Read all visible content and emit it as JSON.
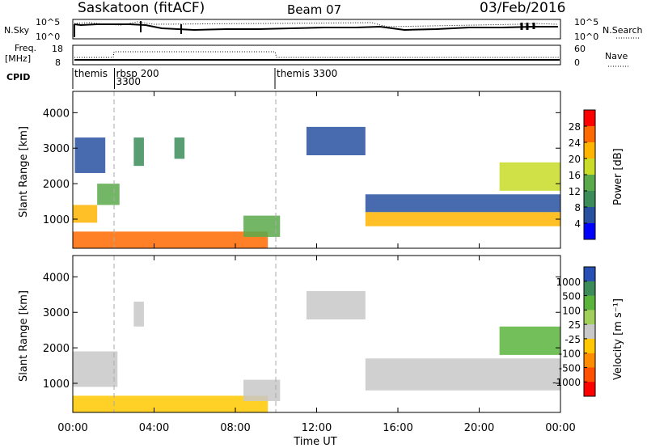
{
  "header": {
    "station": "Saskatoon (fitACF)",
    "beam": "Beam 07",
    "date": "03/Feb/2016"
  },
  "summary": {
    "nsky_label": "N.Sky",
    "nsearch_label": "N.Search",
    "nsky_ticks": [
      "10^5",
      "10^0"
    ],
    "nsearch_ticks": [
      "10^5",
      "10^0"
    ],
    "freq_label_1": "Freq.",
    "freq_label_2": "[MHz]",
    "freq_ticks": [
      "18",
      "8"
    ],
    "nave_label": "Nave",
    "nave_ticks": [
      "60",
      "0"
    ],
    "cpid_label": "CPID",
    "cpid_entries": [
      {
        "name": "themis",
        "number": "",
        "start_hour": 0.0
      },
      {
        "name": "rbsp",
        "number": "200",
        "start_hour": 2.05
      },
      {
        "name": "",
        "number": "3300",
        "start_hour": 2.05
      },
      {
        "name": "themis",
        "number": "3300",
        "start_hour": 9.95
      }
    ]
  },
  "x_axis": {
    "label": "Time UT",
    "ticks": [
      "00:00",
      "04:00",
      "08:00",
      "12:00",
      "16:00",
      "20:00",
      "00:00"
    ],
    "tick_hours": [
      0,
      4,
      8,
      12,
      16,
      20,
      24
    ]
  },
  "panels": {
    "power": {
      "ylabel": "Slant Range [km]",
      "yticks": [
        "4000",
        "3000",
        "2000",
        "1000"
      ],
      "colorbar_label": "Power [dB]",
      "colorbar_ticks": [
        "28",
        "24",
        "20",
        "16",
        "12",
        "8",
        "4"
      ],
      "colorbar_colors": [
        "#ff0000",
        "#ff6a00",
        "#ffb400",
        "#c8dc28",
        "#5aaa4b",
        "#3c8c5a",
        "#2850a0",
        "#0000ff"
      ]
    },
    "velocity": {
      "ylabel": "Slant Range [km]",
      "yticks": [
        "4000",
        "3000",
        "2000",
        "1000"
      ],
      "colorbar_label": "Velocity [m s⁻¹]",
      "colorbar_ticks": [
        "1000",
        "500",
        "100",
        "25",
        "-25",
        "-100",
        "-500",
        "-1000"
      ],
      "colorbar_colors": [
        "#2850b4",
        "#3c8c5a",
        "#5ab43c",
        "#a0d05a",
        "#c8c8c8",
        "#ffc800",
        "#ff8c00",
        "#ff5000",
        "#ff0000"
      ]
    }
  },
  "chart_data": [
    {
      "type": "heatmap",
      "title": "Power",
      "xlabel": "Time UT",
      "ylabel": "Slant Range [km]",
      "xlim_hours": [
        0,
        24
      ],
      "ylim_km": [
        180,
        4600
      ],
      "colorbar_label": "Power [dB]",
      "colorbar_range_db": [
        0,
        32
      ],
      "grid": false,
      "regions": [
        {
          "t0": 0.0,
          "t1": 9.6,
          "r0": 180,
          "r1": 650,
          "power_db": 28
        },
        {
          "t0": 0.0,
          "t1": 1.2,
          "r0": 900,
          "r1": 1400,
          "power_db": 24
        },
        {
          "t0": 1.2,
          "t1": 2.3,
          "r0": 1400,
          "r1": 2000,
          "power_db": 16
        },
        {
          "t0": 0.1,
          "t1": 1.6,
          "r0": 2300,
          "r1": 3300,
          "power_db": 8
        },
        {
          "t0": 3.0,
          "t1": 3.5,
          "r0": 2500,
          "r1": 3300,
          "power_db": 12
        },
        {
          "t0": 5.0,
          "t1": 5.5,
          "r0": 2700,
          "r1": 3300,
          "power_db": 12
        },
        {
          "t0": 8.4,
          "t1": 10.2,
          "r0": 500,
          "r1": 1100,
          "power_db": 16
        },
        {
          "t0": 11.5,
          "t1": 14.4,
          "r0": 2800,
          "r1": 3600,
          "power_db": 8
        },
        {
          "t0": 14.4,
          "t1": 24.0,
          "r0": 800,
          "r1": 1200,
          "power_db": 24
        },
        {
          "t0": 14.4,
          "t1": 24.0,
          "r0": 1200,
          "r1": 1700,
          "power_db": 8
        },
        {
          "t0": 21.0,
          "t1": 24.0,
          "r0": 1800,
          "r1": 2600,
          "power_db": 20
        }
      ]
    },
    {
      "type": "heatmap",
      "title": "Velocity",
      "xlabel": "Time UT",
      "ylabel": "Slant Range [km]",
      "xlim_hours": [
        0,
        24
      ],
      "ylim_km": [
        180,
        4600
      ],
      "colorbar_label": "Velocity [m s⁻¹]",
      "colorbar_range": [
        -1000,
        1000
      ],
      "grid": false,
      "regions": [
        {
          "t0": 0.0,
          "t1": 9.6,
          "r0": 180,
          "r1": 650,
          "velocity": -100
        },
        {
          "t0": 0.0,
          "t1": 2.2,
          "r0": 900,
          "r1": 1900,
          "velocity": 0
        },
        {
          "t0": 3.0,
          "t1": 3.5,
          "r0": 2600,
          "r1": 3300,
          "velocity": 0
        },
        {
          "t0": 8.4,
          "t1": 10.2,
          "r0": 500,
          "r1": 1100,
          "velocity": 0
        },
        {
          "t0": 11.5,
          "t1": 14.4,
          "r0": 2800,
          "r1": 3600,
          "velocity": 0
        },
        {
          "t0": 14.4,
          "t1": 24.0,
          "r0": 800,
          "r1": 1700,
          "velocity": 0
        },
        {
          "t0": 21.0,
          "t1": 24.0,
          "r0": 1800,
          "r1": 2600,
          "velocity": 100
        }
      ]
    }
  ]
}
